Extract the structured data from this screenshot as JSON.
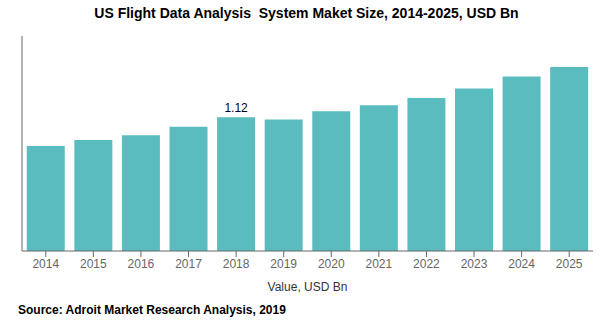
{
  "chart_data": {
    "type": "bar",
    "title": "US Flight Data Analysis  System Maket Size, 2014-2025, USD Bn",
    "xlabel": "Value, USD Bn",
    "categories": [
      "2014",
      "2015",
      "2016",
      "2017",
      "2018",
      "2019",
      "2020",
      "2021",
      "2022",
      "2023",
      "2024",
      "2025"
    ],
    "values": [
      0.88,
      0.93,
      0.97,
      1.04,
      1.12,
      1.1,
      1.17,
      1.22,
      1.28,
      1.36,
      1.46,
      1.54
    ],
    "color": "#5bbcbf",
    "ylim": [
      0,
      1.8
    ],
    "tick_labels": "x",
    "grid": false,
    "annotations": [
      {
        "category": "2018",
        "value": 1.12,
        "text": "1.12"
      }
    ],
    "source": "Source: Adroit Market Research Analysis, 2019"
  }
}
